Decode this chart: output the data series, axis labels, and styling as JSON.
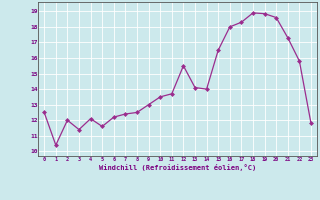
{
  "x": [
    0,
    1,
    2,
    3,
    4,
    5,
    6,
    7,
    8,
    9,
    10,
    11,
    12,
    13,
    14,
    15,
    16,
    17,
    18,
    19,
    20,
    21,
    22,
    23
  ],
  "y": [
    12.5,
    10.4,
    12.0,
    11.4,
    12.1,
    11.6,
    12.2,
    12.4,
    12.5,
    13.0,
    13.5,
    13.7,
    15.5,
    14.1,
    14.0,
    16.5,
    18.0,
    18.3,
    18.9,
    18.85,
    18.6,
    17.3,
    15.8,
    11.8
  ],
  "line_color": "#9b2d8e",
  "marker": "D",
  "marker_size": 2,
  "bg_color": "#cce9ec",
  "grid_color": "#ffffff",
  "xlabel": "Windchill (Refroidissement éolien,°C)",
  "ylabel_ticks": [
    10,
    11,
    12,
    13,
    14,
    15,
    16,
    17,
    18,
    19
  ],
  "ylim": [
    9.7,
    19.6
  ],
  "xlim": [
    -0.5,
    23.5
  ],
  "tick_color": "#7b0080",
  "label_color": "#7b0080"
}
